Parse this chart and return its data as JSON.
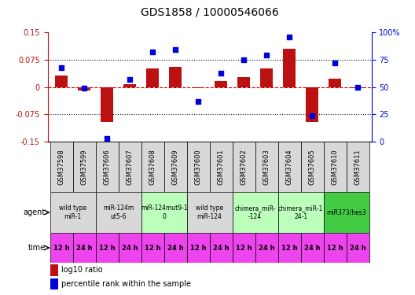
{
  "title": "GDS1858 / 10000546066",
  "samples": [
    "GSM37598",
    "GSM37599",
    "GSM37606",
    "GSM37607",
    "GSM37608",
    "GSM37609",
    "GSM37600",
    "GSM37601",
    "GSM37602",
    "GSM37603",
    "GSM37604",
    "GSM37605",
    "GSM37610",
    "GSM37611"
  ],
  "log10_ratio": [
    0.032,
    -0.01,
    -0.095,
    0.007,
    0.052,
    0.055,
    -0.004,
    0.016,
    0.028,
    0.052,
    0.105,
    -0.095,
    0.022,
    -0.004
  ],
  "percentile_rank": [
    68,
    49,
    3,
    57,
    82,
    84,
    37,
    63,
    75,
    79,
    96,
    24,
    72,
    50
  ],
  "ylim_left": [
    -0.15,
    0.15
  ],
  "ylim_right": [
    0,
    100
  ],
  "yticks_left": [
    -0.15,
    -0.075,
    0,
    0.075,
    0.15
  ],
  "yticks_right": [
    0,
    25,
    50,
    75,
    100
  ],
  "ytick_labels_left": [
    "-0.15",
    "-0.075",
    "0",
    "0.075",
    "0.15"
  ],
  "ytick_labels_right": [
    "0",
    "25",
    "50",
    "75",
    "100%"
  ],
  "bar_color": "#bb1111",
  "dot_color": "#0000dd",
  "dot_size": 18,
  "hline_color": "#cc0000",
  "dotted_color": "#111111",
  "agent_groups": [
    {
      "label": "wild type\nmiR-1",
      "color": "#d8d8d8",
      "span": [
        0,
        2
      ]
    },
    {
      "label": "miR-124m\nut5-6",
      "color": "#d8d8d8",
      "span": [
        2,
        4
      ]
    },
    {
      "label": "miR-124mut9-1\n0",
      "color": "#bbffbb",
      "span": [
        4,
        6
      ]
    },
    {
      "label": "wild type\nmiR-124",
      "color": "#d8d8d8",
      "span": [
        6,
        8
      ]
    },
    {
      "label": "chimera_miR-\n-124",
      "color": "#bbffbb",
      "span": [
        8,
        10
      ]
    },
    {
      "label": "chimera_miR-1\n24-1",
      "color": "#bbffbb",
      "span": [
        10,
        12
      ]
    },
    {
      "label": "miR373/hes3",
      "color": "#44cc44",
      "span": [
        12,
        14
      ]
    }
  ],
  "time_color": "#ee44ee",
  "time_labels": [
    "12 h",
    "24 h",
    "12 h",
    "24 h",
    "12 h",
    "24 h",
    "12 h",
    "24 h",
    "12 h",
    "24 h",
    "12 h",
    "24 h",
    "12 h",
    "24 h"
  ],
  "legend_bar_label": "log10 ratio",
  "legend_dot_label": "percentile rank within the sample",
  "background_color": "#ffffff",
  "title_fontsize": 10,
  "tick_fontsize": 7,
  "sample_fontsize": 6,
  "agent_fontsize": 5.5,
  "time_fontsize": 6,
  "legend_fontsize": 7
}
